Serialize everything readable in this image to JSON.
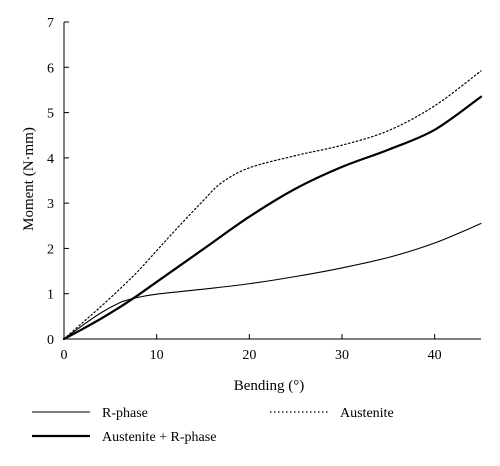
{
  "chart_data": {
    "type": "line",
    "title": "",
    "xlabel": "Bending (°)",
    "ylabel": "Moment (N·mm)",
    "xlim": [
      0,
      45
    ],
    "ylim": [
      0,
      7
    ],
    "xticks": [
      0,
      10,
      20,
      30,
      40
    ],
    "yticks": [
      0,
      1,
      2,
      3,
      4,
      5,
      6,
      7
    ],
    "grid": false,
    "legend_position": "bottom",
    "series": [
      {
        "name": "R-phase",
        "style": "solid-thin",
        "color": "#000000",
        "x": [
          0,
          2,
          4,
          6,
          7,
          8,
          10,
          15,
          20,
          25,
          30,
          35,
          40,
          45
        ],
        "y": [
          0,
          0.3,
          0.58,
          0.8,
          0.87,
          0.92,
          0.99,
          1.1,
          1.22,
          1.38,
          1.57,
          1.8,
          2.12,
          2.55
        ]
      },
      {
        "name": "Austenite + R-phase",
        "style": "solid-thick",
        "color": "#000000",
        "x": [
          0,
          2,
          4,
          6,
          8,
          10,
          15,
          20,
          25,
          30,
          35,
          40,
          45
        ],
        "y": [
          0,
          0.22,
          0.45,
          0.7,
          0.97,
          1.26,
          1.98,
          2.7,
          3.32,
          3.8,
          4.18,
          4.62,
          5.35
        ]
      },
      {
        "name": "Austenite",
        "style": "dotted",
        "color": "#000000",
        "x": [
          0,
          2,
          4,
          6,
          8,
          10,
          12,
          15,
          17,
          20,
          25,
          30,
          35,
          40,
          45
        ],
        "y": [
          0,
          0.36,
          0.72,
          1.1,
          1.5,
          1.95,
          2.4,
          3.05,
          3.45,
          3.78,
          4.05,
          4.28,
          4.6,
          5.15,
          5.92
        ]
      }
    ]
  }
}
